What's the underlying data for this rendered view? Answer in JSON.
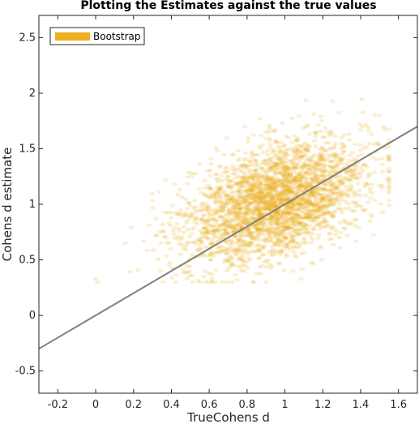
{
  "chart_data": {
    "type": "scatter",
    "title": "Plotting the Estimates against the true values",
    "xlabel": "TrueCohens d",
    "ylabel": "Cohens d estimate",
    "xlim": [
      -0.3,
      1.7
    ],
    "ylim": [
      -0.7,
      2.7
    ],
    "xticks": [
      -0.2,
      0,
      0.2,
      0.4,
      0.6,
      0.8,
      1,
      1.2,
      1.4,
      1.6
    ],
    "xtick_labels": [
      "-0.2",
      "0",
      "0.2",
      "0.4",
      "0.6",
      "0.8",
      "1",
      "1.2",
      "1.4",
      "1.6"
    ],
    "yticks": [
      -0.5,
      0,
      0.5,
      1,
      1.5,
      2,
      2.5
    ],
    "ytick_labels": [
      "-0.5",
      "0",
      "0.5",
      "1",
      "1.5",
      "2",
      "2.5"
    ],
    "legend": {
      "position": "top-left",
      "entries": [
        "Bootstrap"
      ]
    },
    "series": [
      {
        "name": "Bootstrap",
        "color": "#edb120",
        "cloud": {
          "count": 3000,
          "x_mean": 0.95,
          "x_sd": 0.24,
          "x_range": [
            0.0,
            1.55
          ],
          "y_intercept": 0.55,
          "y_slope": 0.5,
          "y_sd": 0.25,
          "y_range": [
            0.3,
            2.35
          ]
        }
      }
    ],
    "reference_line": {
      "x": [
        -0.3,
        1.7
      ],
      "y": [
        -0.3,
        1.7
      ],
      "color": "#808080"
    },
    "grid": false
  }
}
